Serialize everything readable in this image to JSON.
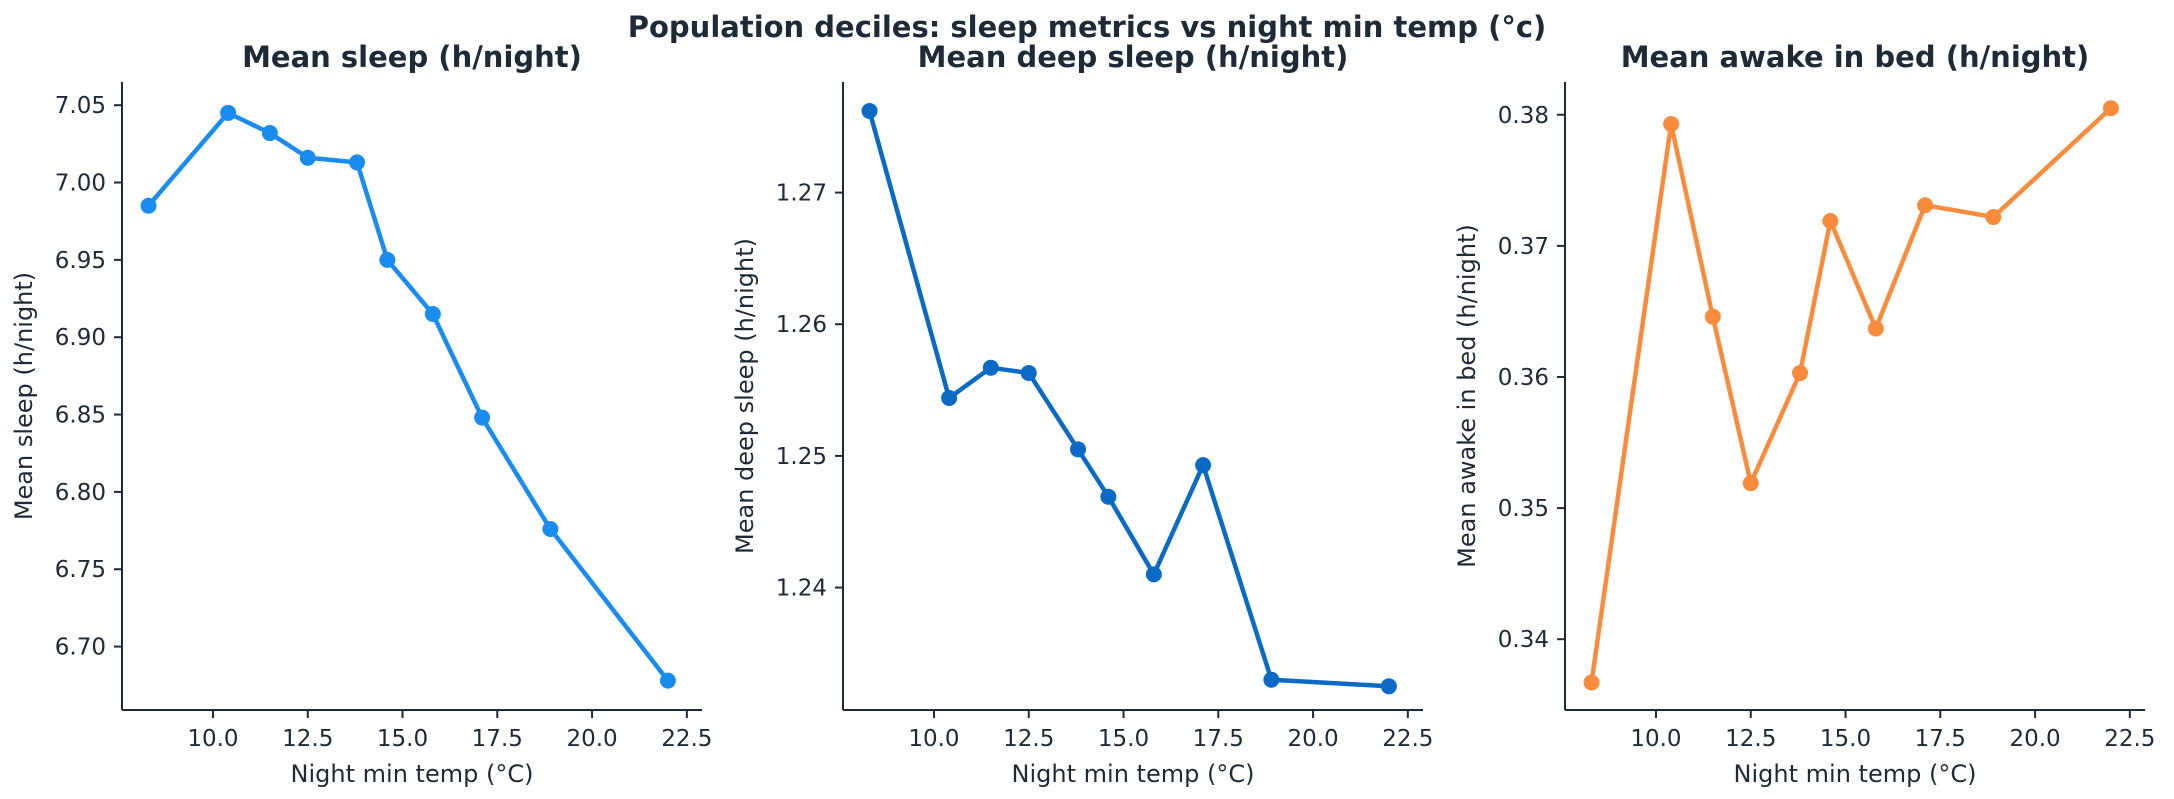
{
  "suptitle": "Population deciles: sleep metrics vs night min temp (°c)",
  "chart_data": [
    {
      "type": "line",
      "title": "Mean sleep (h/night)",
      "xlabel": "Night min temp (°C)",
      "ylabel": "Mean sleep (h/night)",
      "color": "#1a8cf0",
      "xlim": [
        7.6,
        22.9
      ],
      "ylim": [
        6.659,
        7.065
      ],
      "xticks": [
        10.0,
        12.5,
        15.0,
        17.5,
        20.0,
        22.5
      ],
      "xtick_labels": [
        "10.0",
        "12.5",
        "15.0",
        "17.5",
        "20.0",
        "22.5"
      ],
      "yticks": [
        6.7,
        6.75,
        6.8,
        6.85,
        6.9,
        6.95,
        7.0,
        7.05
      ],
      "ytick_labels": [
        "6.70",
        "6.75",
        "6.80",
        "6.85",
        "6.90",
        "6.95",
        "7.00",
        "7.05"
      ],
      "x": [
        8.3,
        10.4,
        11.5,
        12.5,
        13.8,
        14.6,
        15.8,
        17.1,
        18.9,
        22.0
      ],
      "y": [
        6.985,
        7.045,
        7.032,
        7.016,
        7.013,
        6.95,
        6.915,
        6.848,
        6.776,
        6.678
      ]
    },
    {
      "type": "line",
      "title": "Mean deep sleep (h/night)",
      "xlabel": "Night min temp (°C)",
      "ylabel": "Mean deep sleep (h/night)",
      "color": "#0a6ac4",
      "xlim": [
        7.6,
        22.9
      ],
      "ylim": [
        1.2307,
        1.2784
      ],
      "xticks": [
        10.0,
        12.5,
        15.0,
        17.5,
        20.0,
        22.5
      ],
      "xtick_labels": [
        "10.0",
        "12.5",
        "15.0",
        "17.5",
        "20.0",
        "22.5"
      ],
      "yticks": [
        1.24,
        1.25,
        1.26,
        1.27
      ],
      "ytick_labels": [
        "1.24",
        "1.25",
        "1.26",
        "1.27"
      ],
      "x": [
        8.3,
        10.4,
        11.5,
        12.5,
        13.8,
        14.6,
        15.8,
        17.1,
        18.9,
        22.0
      ],
      "y": [
        1.2762,
        1.2544,
        1.2567,
        1.2563,
        1.2505,
        1.2469,
        1.241,
        1.2493,
        1.233,
        1.2325
      ]
    },
    {
      "type": "line",
      "title": "Mean awake in bed (h/night)",
      "xlabel": "Night min temp (°C)",
      "ylabel": "Mean awake in bed (h/night)",
      "color": "#f98c3c",
      "xlim": [
        7.6,
        22.9
      ],
      "ylim": [
        0.3346,
        0.3825
      ],
      "xticks": [
        10.0,
        12.5,
        15.0,
        17.5,
        20.0,
        22.5
      ],
      "xtick_labels": [
        "10.0",
        "12.5",
        "15.0",
        "17.5",
        "20.0",
        "22.5"
      ],
      "yticks": [
        0.34,
        0.35,
        0.36,
        0.37,
        0.38
      ],
      "ytick_labels": [
        "0.34",
        "0.35",
        "0.36",
        "0.37",
        "0.38"
      ],
      "x": [
        8.3,
        10.4,
        11.5,
        12.5,
        13.8,
        14.6,
        15.8,
        17.1,
        18.9,
        22.0
      ],
      "y": [
        0.3367,
        0.3793,
        0.3646,
        0.3519,
        0.3603,
        0.3719,
        0.3637,
        0.3731,
        0.3722,
        0.3805
      ]
    }
  ]
}
